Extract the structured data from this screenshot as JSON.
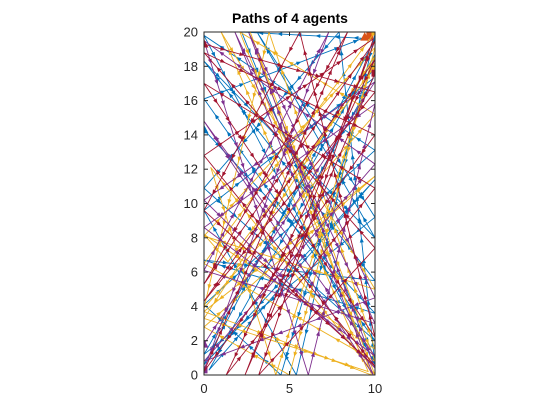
{
  "chart_data": {
    "type": "line",
    "title": "Paths of 4 agents",
    "xlabel": "",
    "ylabel": "",
    "xlim": [
      0,
      10
    ],
    "ylim": [
      0,
      20
    ],
    "x_ticks": [
      "0",
      "5",
      "10"
    ],
    "y_ticks": [
      "0",
      "2",
      "4",
      "6",
      "8",
      "10",
      "12",
      "14",
      "16",
      "18",
      "20"
    ],
    "grid": false,
    "legend": "none",
    "series": [
      {
        "color": "#0072BD",
        "x": [
          0.0,
          10.0,
          0.0,
          10.0,
          0.0,
          10.0,
          3.1,
          10.0,
          0.0,
          10.0,
          4.5,
          0.0,
          10.0,
          0.0,
          10.0,
          7.9,
          0.0,
          10.0,
          0.0,
          10.0,
          5.4,
          0.0,
          9.9,
          0.3,
          10.0,
          0.0,
          10.0,
          2.2,
          10.0
        ],
        "y": [
          14.3,
          3.6,
          6.7,
          5.5,
          18.3,
          8.0,
          20.0,
          9.2,
          1.2,
          18.7,
          0.0,
          4.1,
          13.1,
          19.8,
          0.6,
          20.0,
          10.9,
          2.0,
          16.1,
          19.9,
          0.0,
          9.6,
          17.3,
          0.3,
          11.4,
          0.6,
          19.6,
          20.0,
          0.9
        ]
      },
      {
        "color": "#D95319",
        "x": [
          9.4,
          9.6,
          9.8,
          9.7
        ],
        "y": [
          19.7,
          19.5,
          19.6,
          19.8
        ]
      },
      {
        "color": "#EDB120",
        "x": [
          10.0,
          1.4,
          0.0,
          10.0,
          3.8,
          0.0,
          10.0,
          2.1,
          10.0,
          0.4,
          4.2,
          10.0,
          0.0,
          9.6,
          1.0,
          10.0,
          0.0,
          10.0,
          5.0,
          0.0,
          10.0,
          0.0,
          9.8,
          2.7,
          10.0,
          0.0,
          10.0
        ],
        "y": [
          18.0,
          6.6,
          8.2,
          1.5,
          20.0,
          3.9,
          15.2,
          20.0,
          0.0,
          12.1,
          0.0,
          18.6,
          3.3,
          0.2,
          20.0,
          5.0,
          8.1,
          19.1,
          0.0,
          2.8,
          11.6,
          3.7,
          0.0,
          20.0,
          0.8,
          6.5,
          20.0
        ]
      },
      {
        "color": "#7E2F8E",
        "x": [
          0.0,
          10.0,
          0.0,
          10.0,
          2.6,
          10.0,
          0.0,
          10.0,
          0.0,
          6.1,
          10.0,
          0.0,
          10.0,
          0.0,
          9.9,
          1.8,
          10.0,
          0.0,
          7.3,
          0.0
        ],
        "y": [
          1.8,
          17.1,
          10.2,
          0.4,
          20.0,
          4.5,
          0.8,
          12.3,
          19.5,
          0.0,
          15.8,
          8.6,
          1.1,
          14.8,
          0.0,
          20.0,
          3.0,
          6.1,
          20.0,
          0.3
        ]
      },
      {
        "color": "#A2142F",
        "x": [
          0.0,
          10.0,
          0.0,
          10.0,
          1.3,
          10.0,
          0.0,
          10.0,
          5.6,
          0.0,
          10.0,
          0.0,
          9.9,
          3.2,
          10.0,
          0.0,
          10.0,
          0.0,
          8.4,
          0.0,
          10.0,
          2.4,
          10.0
        ],
        "y": [
          19.3,
          16.5,
          4.3,
          18.4,
          0.0,
          10.9,
          17.0,
          2.2,
          20.0,
          9.6,
          0.5,
          12.8,
          19.6,
          0.0,
          7.4,
          18.8,
          14.0,
          0.2,
          20.0,
          5.3,
          19.5,
          0.0,
          17.6
        ]
      }
    ]
  }
}
